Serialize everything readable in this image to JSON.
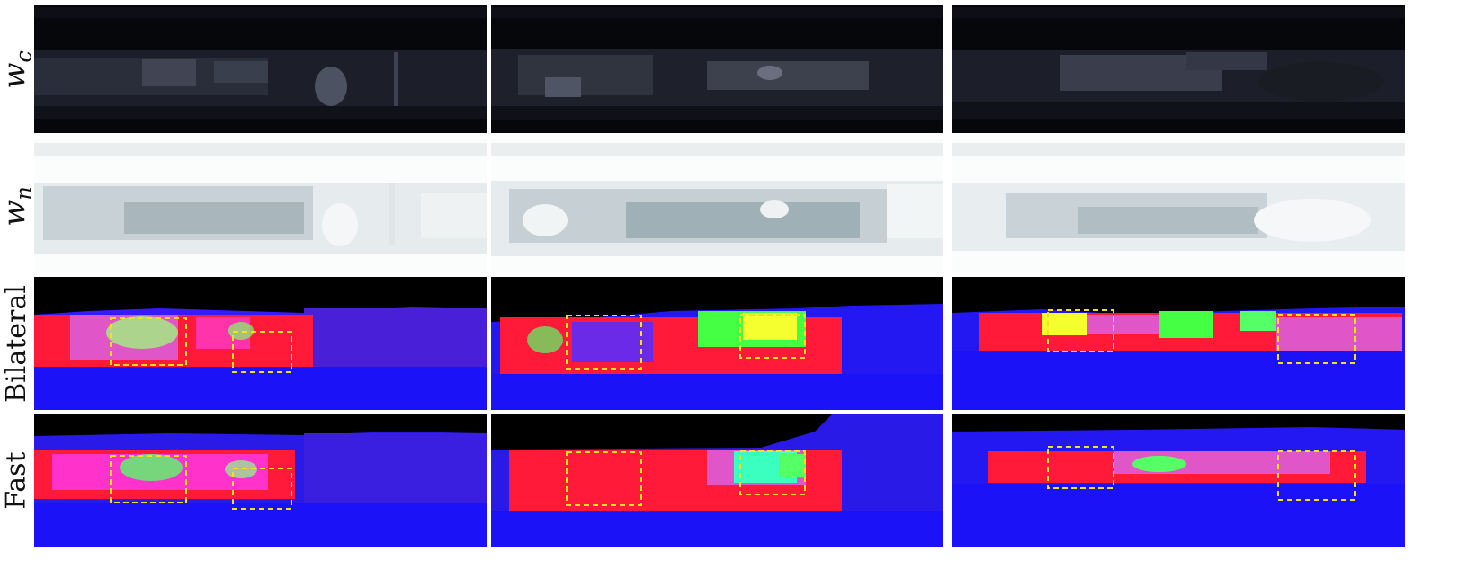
{
  "figure": {
    "row_labels": [
      "w_c",
      "w_n",
      "Bilateral",
      "Fast"
    ],
    "row_label_text": [
      "wc",
      "wn",
      "Bilateral",
      "Fast"
    ],
    "columns": 3,
    "colors": {
      "highlight_box": "#f2e21a",
      "depth_red": "#ff1a3a",
      "depth_blue": "#1a1aff",
      "depth_green": "#1aff3a",
      "depth_magenta": "#ff33cc",
      "weight_dark": "#0b0c12",
      "weight_light": "#e6ecee"
    }
  }
}
